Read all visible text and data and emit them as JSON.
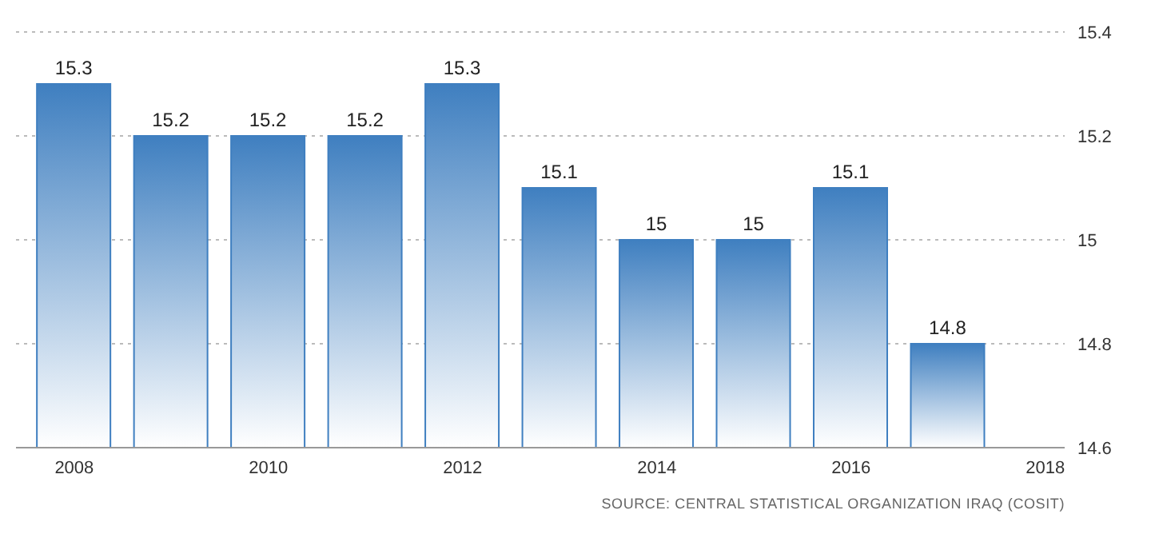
{
  "chart_data": {
    "type": "bar",
    "x": [
      2008,
      2009,
      2010,
      2011,
      2012,
      2013,
      2014,
      2015,
      2016,
      2017
    ],
    "values": [
      15.3,
      15.2,
      15.2,
      15.2,
      15.3,
      15.1,
      15,
      15,
      15.1,
      14.8
    ],
    "color": "#3f7fc0",
    "xlim": [
      2007.4,
      2018.2
    ],
    "xticks": [
      2008,
      2010,
      2012,
      2014,
      2016,
      2018
    ],
    "ylim": [
      14.6,
      15.4
    ],
    "yticks": [
      14.6,
      14.8,
      15,
      15.2,
      15.4
    ],
    "grid": "y",
    "data_labels": true,
    "annotations": [
      "SOURCE: CENTRAL STATISTICAL ORGANIZATION IRAQ (COSIT)"
    ]
  }
}
